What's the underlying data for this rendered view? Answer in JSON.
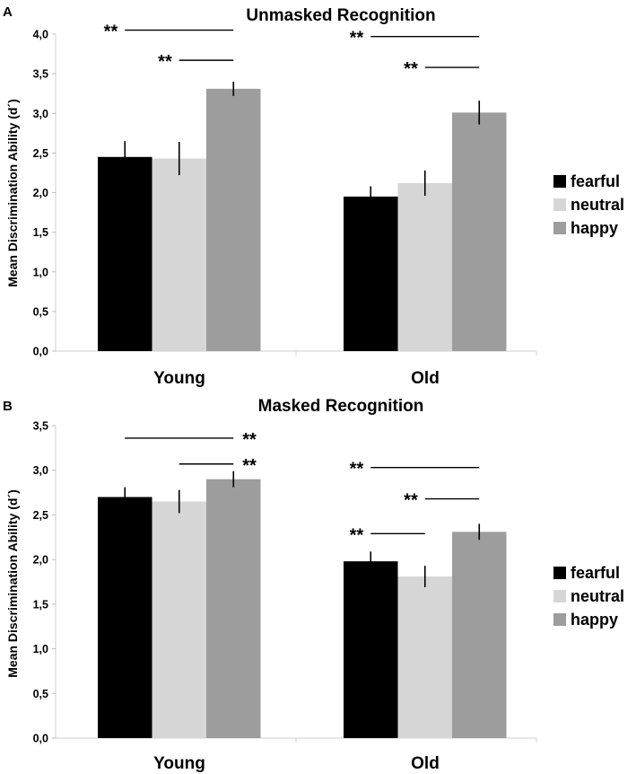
{
  "chart_data": [
    {
      "panel": "A",
      "type": "bar",
      "title": "Unmasked Recognition",
      "ylabel": "Mean Discrimination Ability (d´)",
      "xlabel": "",
      "ylim": [
        0,
        4
      ],
      "yticks": [
        "0,0",
        "0,5",
        "1,0",
        "1,5",
        "2,0",
        "2,5",
        "3,0",
        "3,5",
        "4,0"
      ],
      "categories": [
        "Young",
        "Old"
      ],
      "series": [
        {
          "name": "fearful",
          "color": "#000000",
          "values": [
            2.45,
            1.95
          ],
          "errors": [
            0.2,
            0.13
          ]
        },
        {
          "name": "neutral",
          "color": "#d6d6d6",
          "values": [
            2.43,
            2.12
          ],
          "errors": [
            0.21,
            0.16
          ]
        },
        {
          "name": "happy",
          "color": "#9d9d9d",
          "values": [
            3.31,
            3.01
          ],
          "errors": [
            0.09,
            0.15
          ]
        }
      ],
      "significance": [
        {
          "label": "**",
          "group": 0,
          "from": 0,
          "to": 2,
          "level": 4.05
        },
        {
          "label": "**",
          "group": 0,
          "from": 1,
          "to": 2,
          "level": 3.67
        },
        {
          "label": "**",
          "group": 1,
          "from": 0,
          "to": 2,
          "level": 3.97
        },
        {
          "label": "**",
          "group": 1,
          "from": 1,
          "to": 2,
          "level": 3.58
        }
      ],
      "legend": [
        "fearful",
        "neutral",
        "happy"
      ]
    },
    {
      "panel": "B",
      "type": "bar",
      "title": "Masked Recognition",
      "ylabel": "Mean Discrimination Ability (d´)",
      "xlabel": "",
      "ylim": [
        0,
        3.5
      ],
      "yticks": [
        "0,0",
        "0,5",
        "1,0",
        "1,5",
        "2,0",
        "2,5",
        "3,0",
        "3,5"
      ],
      "categories": [
        "Young",
        "Old"
      ],
      "series": [
        {
          "name": "fearful",
          "color": "#000000",
          "values": [
            2.7,
            1.98
          ],
          "errors": [
            0.11,
            0.11
          ]
        },
        {
          "name": "neutral",
          "color": "#d6d6d6",
          "values": [
            2.65,
            1.81
          ],
          "errors": [
            0.13,
            0.12
          ]
        },
        {
          "name": "happy",
          "color": "#9d9d9d",
          "values": [
            2.9,
            2.31
          ],
          "errors": [
            0.09,
            0.09
          ]
        }
      ],
      "significance": [
        {
          "label": "**",
          "group": 0,
          "from": 0,
          "to": 2,
          "level": 3.36
        },
        {
          "label": "**",
          "group": 0,
          "from": 1,
          "to": 2,
          "level": 3.07
        },
        {
          "label": "**",
          "group": 1,
          "from": 0,
          "to": 2,
          "level": 3.03
        },
        {
          "label": "**",
          "group": 1,
          "from": 1,
          "to": 2,
          "level": 2.68
        },
        {
          "label": "**",
          "group": 1,
          "from": 0,
          "to": 1,
          "level": 2.29
        }
      ],
      "legend": [
        "fearful",
        "neutral",
        "happy"
      ]
    }
  ]
}
